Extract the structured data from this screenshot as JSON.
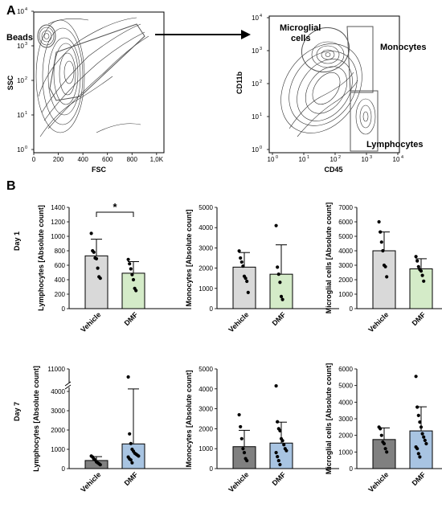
{
  "panel_labels": {
    "a": "A",
    "b": "B"
  },
  "row_labels": {
    "day1": "Day 1",
    "day7": "Day 7"
  },
  "colors": {
    "vehicle_day1": "#d9d9d9",
    "dmf_day1": "#d4ebc8",
    "vehicle_day7": "#808080",
    "dmf_day7": "#a8c4e2"
  },
  "flow": {
    "plot1": {
      "xlabel": "FSC",
      "ylabel": "SSC",
      "x_ticks": [
        "0",
        "200",
        "400",
        "600",
        "800",
        "1,0K"
      ],
      "y_ticks": [
        "10",
        "10",
        "10",
        "10",
        "10"
      ],
      "y_exps": [
        "0",
        "1",
        "2",
        "3",
        "4"
      ],
      "gate_label": "Beads"
    },
    "plot2": {
      "xlabel": "CD45",
      "ylabel": "CD11b",
      "x_ticks": [
        "10",
        "10",
        "10",
        "10",
        "10"
      ],
      "x_exps": [
        "0",
        "1",
        "2",
        "3",
        "4"
      ],
      "y_ticks": [
        "10",
        "10",
        "10",
        "10",
        "10"
      ],
      "y_exps": [
        "0",
        "1",
        "2",
        "3",
        "4"
      ],
      "gates": [
        "Microglial",
        "cells",
        "Monocytes",
        "Lymphocytes"
      ]
    }
  },
  "chart_data": [
    {
      "id": "c1",
      "type": "bar",
      "row": "Day 1",
      "ylabel": "Lymphocytes [Absolute count]",
      "categories": [
        "Vehicle",
        "DMF"
      ],
      "ylim": [
        0,
        1400
      ],
      "y_ticks": [
        "0",
        "200",
        "400",
        "600",
        "800",
        "1000",
        "1200",
        "1400"
      ],
      "series": [
        {
          "values": [
            730,
            490
          ],
          "errors": [
            230,
            160
          ]
        }
      ],
      "points": [
        [
          1040,
          800,
          780,
          700,
          690,
          560,
          440,
          420
        ],
        [
          680,
          620,
          550,
          470,
          400,
          280,
          250
        ]
      ],
      "significance": "*"
    },
    {
      "id": "c2",
      "type": "bar",
      "row": "Day 1",
      "ylabel": "Monocytes [Absolute count]",
      "categories": [
        "Vehicle",
        "DMF"
      ],
      "ylim": [
        0,
        5000
      ],
      "y_ticks": [
        "0",
        "1000",
        "2000",
        "3000",
        "4000",
        "5000"
      ],
      "series": [
        {
          "values": [
            2050,
            1700
          ],
          "errors": [
            720,
            1450
          ]
        }
      ],
      "points": [
        [
          2850,
          2500,
          2300,
          2100,
          1600,
          1500,
          1350,
          800
        ],
        [
          4100,
          2050,
          1700,
          1300,
          600,
          450
        ]
      ]
    },
    {
      "id": "c3",
      "type": "bar",
      "row": "Day 1",
      "ylabel": "Microglial cells [Absolute count]",
      "categories": [
        "Vehicle",
        "DMF"
      ],
      "ylim": [
        0,
        7000
      ],
      "y_ticks": [
        "0",
        "1000",
        "2000",
        "3000",
        "4000",
        "5000",
        "6000",
        "7000"
      ],
      "series": [
        {
          "values": [
            4000,
            2750
          ],
          "errors": [
            1300,
            700
          ]
        }
      ],
      "points": [
        [
          6000,
          5300,
          4600,
          4000,
          3000,
          2900,
          2200
        ],
        [
          3600,
          3300,
          2900,
          2700,
          2600,
          2300,
          1900
        ]
      ]
    },
    {
      "id": "c4",
      "type": "bar",
      "row": "Day 7",
      "ylabel": "Lymphocytes [Absolute count]",
      "categories": [
        "Vehicle",
        "DMF"
      ],
      "ylim": [
        0,
        11000
      ],
      "y_ticks": [
        "0",
        "1000",
        "2000",
        "3000",
        "4000",
        "11000"
      ],
      "axis_break": [
        4500,
        10500
      ],
      "series": [
        {
          "values": [
            420,
            1280
          ],
          "errors": [
            200,
            2850
          ]
        }
      ],
      "points": [
        [
          650,
          600,
          500,
          450,
          350,
          300,
          250,
          200
        ],
        [
          10500,
          1800,
          1300,
          1000,
          900,
          800,
          750,
          700,
          650,
          600,
          500,
          450,
          300
        ]
      ]
    },
    {
      "id": "c5",
      "type": "bar",
      "row": "Day 7",
      "ylabel": "Monocytes [Absolute count]",
      "categories": [
        "Vehicle",
        "DMF"
      ],
      "ylim": [
        0,
        5000
      ],
      "y_ticks": [
        "0",
        "1000",
        "2000",
        "3000",
        "4000",
        "5000"
      ],
      "series": [
        {
          "values": [
            1100,
            1280
          ],
          "errors": [
            820,
            1050
          ]
        }
      ],
      "points": [
        [
          2700,
          2100,
          1500,
          1000,
          800,
          500,
          400
        ],
        [
          4150,
          2350,
          2000,
          1900,
          1500,
          1400,
          1200,
          1000,
          900,
          800,
          600,
          400,
          200
        ]
      ]
    },
    {
      "id": "c6",
      "type": "bar",
      "row": "Day 7",
      "ylabel": "Microglial cells [Absolute count]",
      "categories": [
        "Vehicle",
        "DMF"
      ],
      "ylim": [
        0,
        6000
      ],
      "y_ticks": [
        "0",
        "1000",
        "2000",
        "3000",
        "4000",
        "5000",
        "6000"
      ],
      "series": [
        {
          "values": [
            1750,
            2270
          ],
          "errors": [
            700,
            1450
          ]
        }
      ],
      "points": [
        [
          2500,
          2400,
          2000,
          1600,
          1500,
          1200,
          1000
        ],
        [
          5550,
          3700,
          3200,
          2800,
          2500,
          2100,
          1900,
          1700,
          1500,
          1300,
          1200,
          900,
          700
        ]
      ]
    }
  ]
}
